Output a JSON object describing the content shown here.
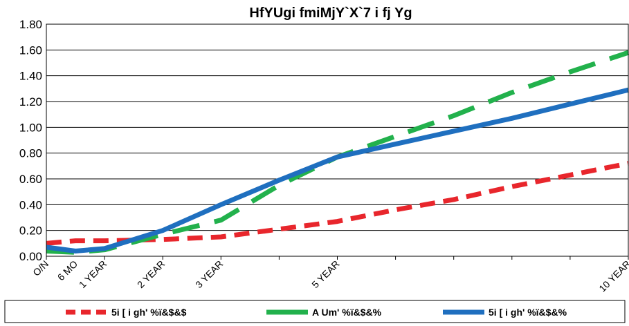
{
  "chart_data": {
    "type": "line",
    "title": "HfYUgi fmiMjY`X`7 i fj Yg",
    "xlabel": "",
    "ylabel": "",
    "ylim": [
      0,
      1.8
    ],
    "yticks": [
      "0.00",
      "0.20",
      "0.40",
      "0.60",
      "0.80",
      "1.00",
      "1.20",
      "1.40",
      "1.60",
      "1.80"
    ],
    "x_categories": [
      "O/N",
      "6 MO",
      "1 YEAR",
      "2 YEAR",
      "3 YEAR",
      "5 YEAR",
      "10 YEAR"
    ],
    "x_positions_years": [
      0,
      0.5,
      1,
      2,
      3,
      5,
      10
    ],
    "grid": true,
    "legend_position": "bottom",
    "series": [
      {
        "name": "5i [ i gh' %ï&$&$",
        "color": "#e8262c",
        "style": "dashed",
        "x": [
          0,
          0.5,
          1,
          2,
          3,
          4,
          5,
          6,
          7,
          8,
          9,
          10
        ],
        "y": [
          0.1,
          0.12,
          0.12,
          0.13,
          0.15,
          0.21,
          0.27,
          0.36,
          0.44,
          0.54,
          0.63,
          0.72
        ]
      },
      {
        "name": "A Um' %ï&$&%",
        "color": "#22b14c",
        "style": "long-dashed",
        "x": [
          0,
          0.5,
          1,
          2,
          3,
          4,
          5,
          6,
          7,
          8,
          9,
          10
        ],
        "y": [
          0.04,
          0.03,
          0.05,
          0.17,
          0.28,
          0.55,
          0.77,
          0.93,
          1.09,
          1.27,
          1.43,
          1.58
        ]
      },
      {
        "name": "5i [ i gh' %ï&$&%",
        "color": "#1f6fbf",
        "style": "solid",
        "x": [
          0,
          0.5,
          1,
          2,
          3,
          4,
          5,
          6,
          7,
          8,
          9,
          10
        ],
        "y": [
          0.07,
          0.04,
          0.06,
          0.2,
          0.4,
          0.59,
          0.77,
          0.87,
          0.97,
          1.07,
          1.18,
          1.29
        ]
      }
    ]
  }
}
